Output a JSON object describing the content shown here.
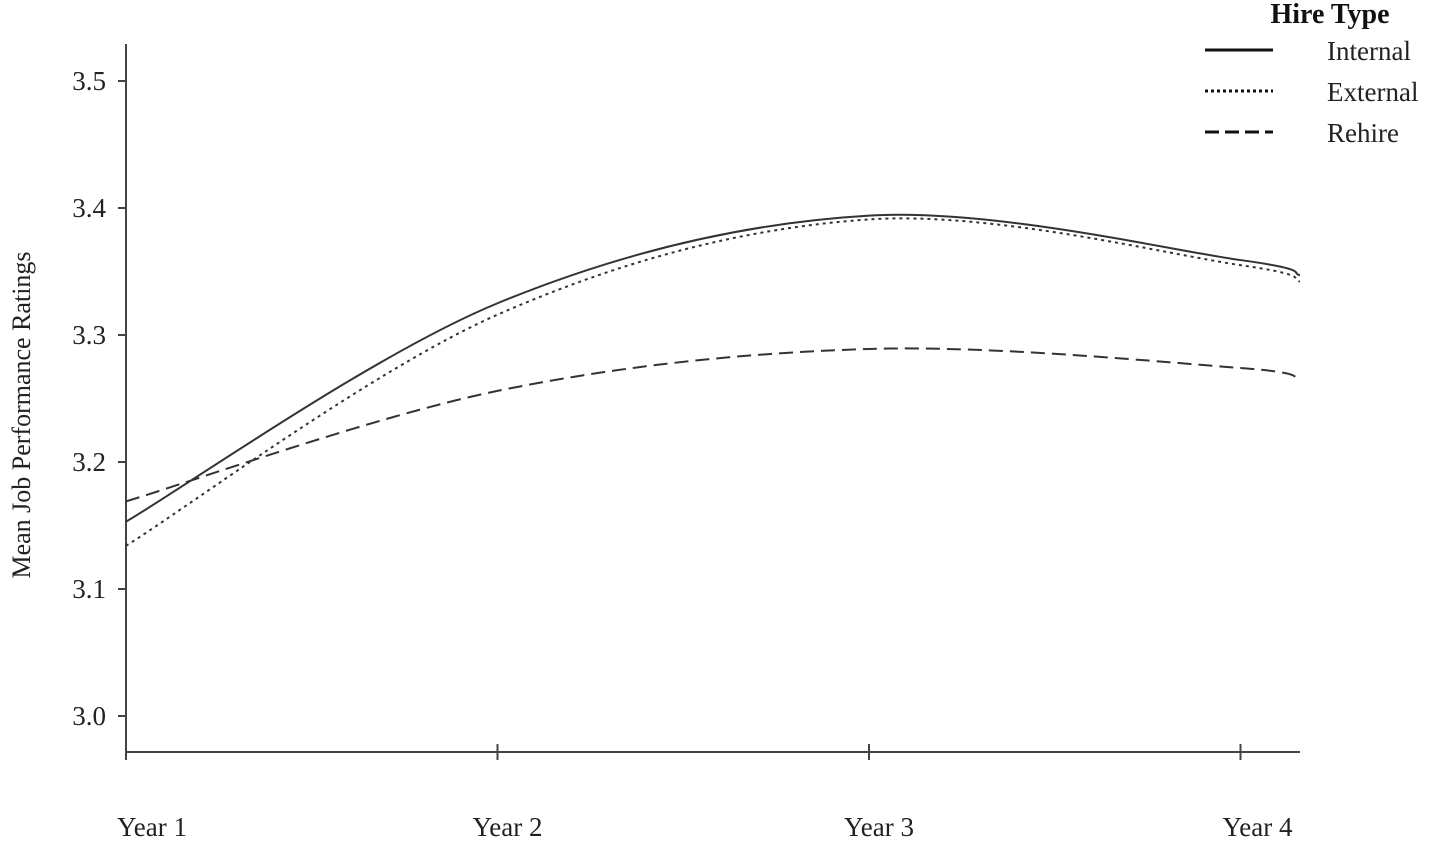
{
  "chart_data": {
    "type": "line",
    "title": "",
    "xlabel": "",
    "ylabel": "Mean Job Performance Ratings",
    "categories": [
      "Year 1",
      "Year 2",
      "Year 3",
      "Year 4"
    ],
    "x": [
      1,
      2,
      3,
      4
    ],
    "ylim": [
      3.0,
      3.5
    ],
    "yticks": [
      "3.0",
      "3.1",
      "3.2",
      "3.3",
      "3.4",
      "3.5"
    ],
    "grid": false,
    "legend": {
      "title": "Hire Type",
      "placement": "top-right"
    },
    "series": [
      {
        "name": "Internal",
        "style": "solid",
        "color": "#333333",
        "values": [
          3.153,
          3.325,
          3.394,
          3.359
        ],
        "x_end": 4.16,
        "value_end": 3.347
      },
      {
        "name": "External",
        "style": "dotted",
        "color": "#333333",
        "values": [
          3.134,
          3.316,
          3.391,
          3.355
        ],
        "x_end": 4.16,
        "value_end": 3.342
      },
      {
        "name": "Rehire",
        "style": "dashed",
        "color": "#333333",
        "values": [
          3.169,
          3.256,
          3.289,
          3.274
        ],
        "x_end": 4.16,
        "value_end": 3.264
      }
    ]
  }
}
